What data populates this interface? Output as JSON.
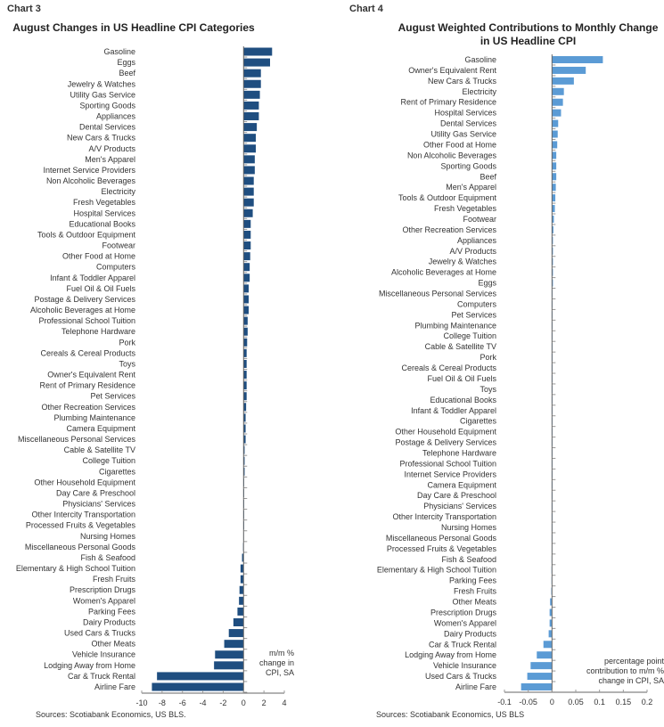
{
  "chart_data": [
    {
      "type": "bar",
      "orientation": "horizontal",
      "chart_label": "Chart 3",
      "title": "August Changes in US Headline CPI Categories",
      "axis_note": "m/m % change in CPI, SA",
      "source": "Sources: Scotiabank Economics, US BLS.",
      "xlim": [
        -10,
        4
      ],
      "xticks": [
        -10,
        -8,
        -6,
        -4,
        -2,
        0,
        2,
        4
      ],
      "color": "#1f4e80",
      "categories": [
        "Gasoline",
        "Eggs",
        "Beef",
        "Jewelry & Watches",
        "Utility Gas Service",
        "Sporting Goods",
        "Appliances",
        "Dental Services",
        "New Cars & Trucks",
        "A/V Products",
        "Men's Apparel",
        "Internet Service Providers",
        "Non Alcoholic Beverages",
        "Electricity",
        "Fresh Vegetables",
        "Hospital Services",
        "Educational Books",
        "Tools & Outdoor Equipment",
        "Footwear",
        "Other Food at Home",
        "Computers",
        "Infant & Toddler Apparel",
        "Fuel Oil & Oil Fuels",
        "Postage & Delivery Services",
        "Alcoholic Beverages at Home",
        "Professional School Tuition",
        "Telephone Hardware",
        "Pork",
        "Cereals & Cereal Products",
        "Toys",
        "Owner's Equivalent Rent",
        "Rent of Primary Residence",
        "Pet Services",
        "Other Recreation Services",
        "Plumbing Maintenance",
        "Camera Equipment",
        "Miscellaneous Personal Services",
        "Cable & Satellite TV",
        "College Tuition",
        "Cigarettes",
        "Other Household Equipment",
        "Day Care & Preschool",
        "Physicians' Services",
        "Other Intercity Transportation",
        "Processed Fruits & Vegetables",
        "Nursing Homes",
        "Miscellaneous Personal Goods",
        "Fish & Seafood",
        "Elementary & High School Tuition",
        "Fresh Fruits",
        "Prescription Drugs",
        "Women's Apparel",
        "Parking Fees",
        "Dairy Products",
        "Used Cars & Trucks",
        "Other Meats",
        "Vehicle Insurance",
        "Lodging Away from Home",
        "Car & Truck Rental",
        "Airline Fare"
      ],
      "values": [
        2.8,
        2.6,
        1.7,
        1.7,
        1.6,
        1.5,
        1.5,
        1.3,
        1.2,
        1.2,
        1.1,
        1.1,
        1.0,
        1.0,
        1.0,
        0.9,
        0.7,
        0.7,
        0.7,
        0.65,
        0.6,
        0.6,
        0.5,
        0.5,
        0.5,
        0.4,
        0.4,
        0.35,
        0.3,
        0.3,
        0.3,
        0.3,
        0.3,
        0.25,
        0.2,
        0.2,
        0.2,
        0.1,
        0.1,
        0.1,
        0.05,
        0.05,
        0.03,
        0.02,
        0.0,
        -0.02,
        -0.05,
        -0.15,
        -0.3,
        -0.3,
        -0.4,
        -0.45,
        -0.6,
        -1.0,
        -1.45,
        -1.9,
        -2.8,
        -2.9,
        -8.5,
        -9.0
      ]
    },
    {
      "type": "bar",
      "orientation": "horizontal",
      "chart_label": "Chart 4",
      "title": "August Weighted Contributions to Monthly Change in US Headline CPI",
      "axis_note": "percentage point contribution to m/m % change in CPI, SA",
      "source": "Sources: Scotiabank Economics, US BLS",
      "xlim": [
        -0.1,
        0.2
      ],
      "xticks": [
        "-0.1",
        "-0.05",
        "0",
        "0.05",
        "0.1",
        "0.15",
        "0.2"
      ],
      "color": "#5b9bd5",
      "categories": [
        "Gasoline",
        "Owner's Equivalent Rent",
        "New Cars & Trucks",
        "Electricity",
        "Rent of Primary Residence",
        "Hospital Services",
        "Dental Services",
        "Utility Gas Service",
        "Other Food at Home",
        "Non Alcoholic Beverages",
        "Sporting Goods",
        "Beef",
        "Men's Apparel",
        "Tools & Outdoor Equipment",
        "Fresh Vegetables",
        "Footwear",
        "Other Recreation Services",
        "Appliances",
        "A/V Products",
        "Jewelry & Watches",
        "Alcoholic Beverages at Home",
        "Eggs",
        "Miscellaneous Personal Services",
        "Computers",
        "Pet Services",
        "Plumbing Maintenance",
        "College Tuition",
        "Cable & Satellite TV",
        "Pork",
        "Cereals & Cereal Products",
        "Fuel Oil & Oil Fuels",
        "Toys",
        "Educational Books",
        "Infant & Toddler Apparel",
        "Cigarettes",
        "Other Household Equipment",
        "Postage & Delivery Services",
        "Telephone Hardware",
        "Professional School Tuition",
        "Internet Service Providers",
        "Camera Equipment",
        "Day Care & Preschool",
        "Physicians' Services",
        "Other Intercity Transportation",
        "Nursing Homes",
        "Miscellaneous Personal Goods",
        "Processed Fruits & Vegetables",
        "Fish & Seafood",
        "Elementary & High School Tuition",
        "Parking Fees",
        "Fresh Fruits",
        "Other Meats",
        "Prescription Drugs",
        "Women's Apparel",
        "Dairy Products",
        "Car & Truck Rental",
        "Lodging Away from Home",
        "Vehicle Insurance",
        "Used Cars & Trucks",
        "Airline Fare"
      ],
      "values": [
        0.107,
        0.071,
        0.046,
        0.025,
        0.023,
        0.019,
        0.013,
        0.012,
        0.011,
        0.009,
        0.009,
        0.009,
        0.008,
        0.007,
        0.006,
        0.004,
        0.003,
        0.002,
        0.002,
        0.002,
        0.002,
        0.002,
        0.001,
        0.001,
        0.001,
        0.001,
        0.001,
        0.001,
        0.001,
        0.001,
        0.0005,
        0.0005,
        0.0005,
        0.0005,
        0.0003,
        0.0003,
        0.0003,
        0.0002,
        0.0002,
        0.0001,
        0.0001,
        0.0,
        0.0,
        0.0,
        -0.0002,
        -0.0003,
        -0.0005,
        -0.0008,
        -0.001,
        -0.001,
        -0.0015,
        -0.004,
        -0.005,
        -0.005,
        -0.007,
        -0.018,
        -0.032,
        -0.045,
        -0.052,
        -0.065
      ]
    }
  ]
}
